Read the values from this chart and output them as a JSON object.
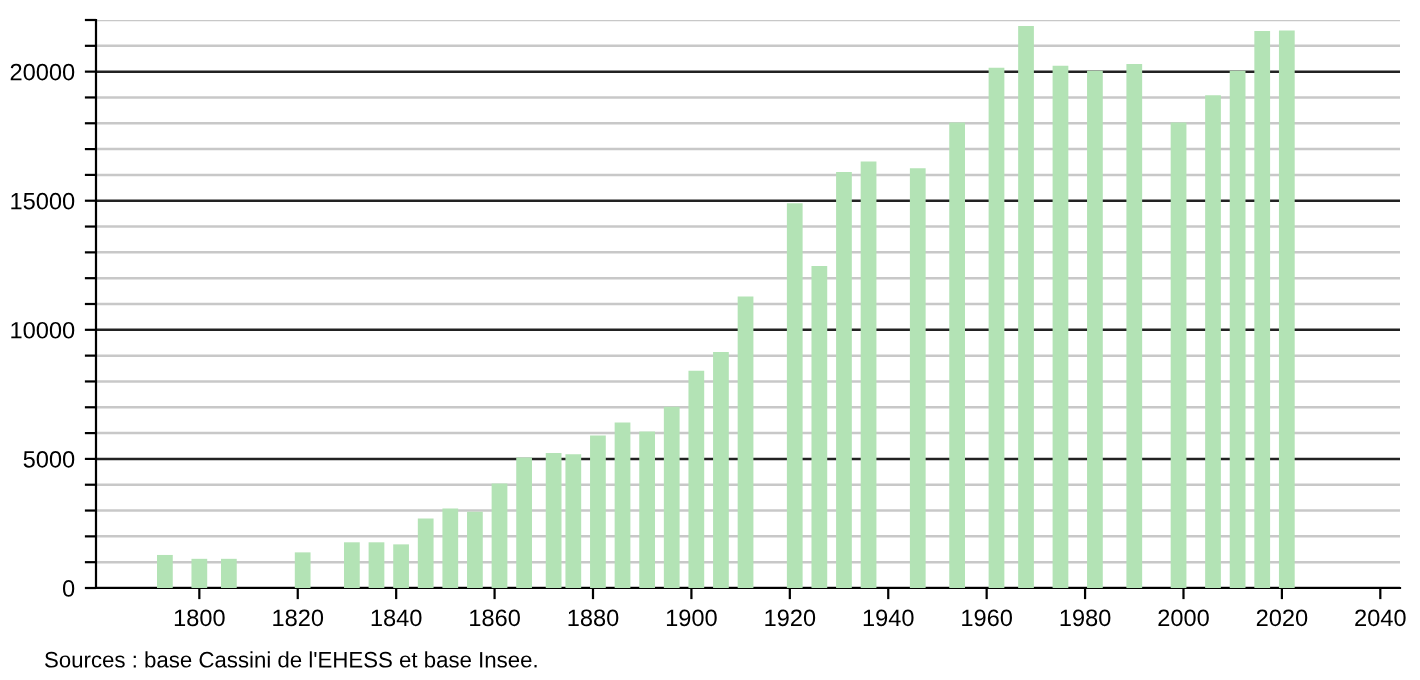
{
  "chart_data": {
    "type": "bar",
    "color": "#b3e3b5",
    "grid": "y",
    "x": [
      1793,
      1800,
      1806,
      1821,
      1831,
      1836,
      1841,
      1846,
      1851,
      1856,
      1861,
      1866,
      1872,
      1876,
      1881,
      1886,
      1891,
      1896,
      1901,
      1906,
      1911,
      1921,
      1926,
      1931,
      1936,
      1946,
      1954,
      1962,
      1968,
      1975,
      1982,
      1990,
      1999,
      2006,
      2011,
      2016,
      2021
    ],
    "values": [
      1280,
      1130,
      1130,
      1380,
      1770,
      1770,
      1690,
      2690,
      3080,
      2950,
      4050,
      5050,
      5230,
      5180,
      5910,
      6410,
      6060,
      7020,
      8410,
      9140,
      11290,
      14900,
      12470,
      16110,
      16520,
      16260,
      18030,
      20150,
      21770,
      20230,
      20030,
      20300,
      18030,
      19090,
      20030,
      21570,
      21590
    ],
    "xlim": [
      1779,
      2044
    ],
    "xticks": [
      1800,
      1820,
      1840,
      1860,
      1880,
      1900,
      1920,
      1940,
      1960,
      1980,
      2000,
      2020,
      2040
    ],
    "ylim": [
      0,
      22000
    ],
    "yticks": [
      0,
      {
        "value": 1000,
        "label": null
      },
      {
        "value": 2000,
        "label": null
      },
      {
        "value": 3000,
        "label": null
      },
      {
        "value": 4000,
        "label": null
      },
      5000,
      {
        "value": 6000,
        "label": null
      },
      {
        "value": 7000,
        "label": null
      },
      {
        "value": 8000,
        "label": null
      },
      {
        "value": 9000,
        "label": null
      },
      10000,
      {
        "value": 11000,
        "label": null
      },
      {
        "value": 12000,
        "label": null
      },
      {
        "value": 13000,
        "label": null
      },
      {
        "value": 14000,
        "label": null
      },
      15000,
      {
        "value": 16000,
        "label": null
      },
      {
        "value": 17000,
        "label": null
      },
      {
        "value": 18000,
        "label": null
      },
      {
        "value": 19000,
        "label": null
      },
      20000,
      {
        "value": 21000,
        "label": null
      },
      {
        "value": 22000,
        "label": null
      }
    ],
    "annotations": [
      "Sources : base Cassini de l'EHESS et base Insee."
    ]
  }
}
